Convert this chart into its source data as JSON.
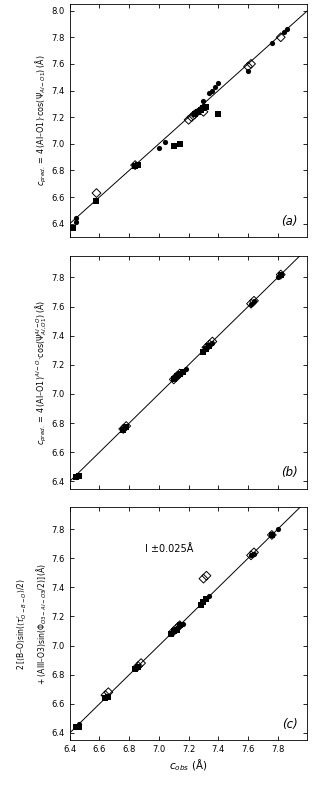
{
  "xlim": [
    6.4,
    8.0
  ],
  "ylim_a": [
    6.3,
    8.0
  ],
  "ylim_bc": [
    6.4,
    8.0
  ],
  "xticks": [
    6.4,
    6.6,
    6.8,
    7.0,
    7.2,
    7.4,
    7.6,
    7.8
  ],
  "yticks_a": [
    6.4,
    6.6,
    6.8,
    7.0,
    7.2,
    7.4,
    7.6,
    7.8,
    8.0
  ],
  "yticks_bc": [
    6.4,
    6.6,
    6.8,
    7.0,
    7.2,
    7.4,
    7.6,
    7.8
  ],
  "xlabel": "$c_{obs}$ (Å)",
  "panel_a": {
    "label": "(a)",
    "filled_circles": [
      [
        6.44,
        6.41
      ],
      [
        6.44,
        6.44
      ],
      [
        7.0,
        6.97
      ],
      [
        7.04,
        7.01
      ],
      [
        7.26,
        7.25
      ],
      [
        7.28,
        7.27
      ],
      [
        7.3,
        7.32
      ],
      [
        7.34,
        7.38
      ],
      [
        7.36,
        7.4
      ],
      [
        7.38,
        7.43
      ],
      [
        7.4,
        7.46
      ],
      [
        7.6,
        7.55
      ],
      [
        7.76,
        7.76
      ],
      [
        7.84,
        7.84
      ],
      [
        7.86,
        7.86
      ]
    ],
    "filled_squares": [
      [
        6.42,
        6.37
      ],
      [
        6.58,
        6.57
      ],
      [
        6.84,
        6.83
      ],
      [
        6.86,
        6.84
      ],
      [
        7.1,
        6.98
      ],
      [
        7.14,
        7.0
      ],
      [
        7.24,
        7.22
      ],
      [
        7.26,
        7.24
      ],
      [
        7.28,
        7.25
      ],
      [
        7.3,
        7.27
      ],
      [
        7.32,
        7.28
      ],
      [
        7.4,
        7.22
      ]
    ],
    "open_diamonds": [
      [
        6.58,
        6.63
      ],
      [
        6.84,
        6.84
      ],
      [
        7.2,
        7.18
      ],
      [
        7.22,
        7.2
      ],
      [
        7.24,
        7.22
      ],
      [
        7.3,
        7.24
      ],
      [
        7.6,
        7.58
      ],
      [
        7.62,
        7.6
      ],
      [
        7.82,
        7.8
      ]
    ]
  },
  "panel_b": {
    "label": "(b)",
    "filled_circles": [
      [
        6.44,
        6.43
      ],
      [
        6.46,
        6.44
      ],
      [
        7.14,
        7.14
      ],
      [
        7.16,
        7.15
      ],
      [
        7.18,
        7.17
      ],
      [
        7.34,
        7.33
      ],
      [
        7.36,
        7.35
      ],
      [
        7.62,
        7.62
      ],
      [
        7.64,
        7.64
      ],
      [
        7.8,
        7.8
      ],
      [
        7.82,
        7.82
      ]
    ],
    "filled_squares": [
      [
        6.44,
        6.43
      ],
      [
        6.46,
        6.44
      ],
      [
        6.76,
        6.75
      ],
      [
        6.78,
        6.77
      ],
      [
        7.1,
        7.1
      ],
      [
        7.12,
        7.12
      ],
      [
        7.14,
        7.14
      ],
      [
        7.16,
        7.15
      ],
      [
        7.3,
        7.29
      ],
      [
        7.32,
        7.31
      ],
      [
        7.34,
        7.33
      ],
      [
        7.82,
        7.82
      ]
    ],
    "open_diamonds": [
      [
        6.76,
        6.76
      ],
      [
        6.78,
        6.78
      ],
      [
        7.1,
        7.1
      ],
      [
        7.12,
        7.12
      ],
      [
        7.14,
        7.14
      ],
      [
        7.32,
        7.32
      ],
      [
        7.34,
        7.34
      ],
      [
        7.36,
        7.36
      ],
      [
        7.62,
        7.62
      ],
      [
        7.64,
        7.64
      ],
      [
        7.82,
        7.82
      ]
    ]
  },
  "panel_c": {
    "label": "(c)",
    "annotation": "I ±0.025Å",
    "filled_circles": [
      [
        6.44,
        6.44
      ],
      [
        6.46,
        6.46
      ],
      [
        7.12,
        7.12
      ],
      [
        7.14,
        7.14
      ],
      [
        7.16,
        7.15
      ],
      [
        7.32,
        7.32
      ],
      [
        7.34,
        7.34
      ],
      [
        7.62,
        7.62
      ],
      [
        7.64,
        7.63
      ],
      [
        7.76,
        7.76
      ],
      [
        7.8,
        7.8
      ]
    ],
    "filled_squares": [
      [
        6.44,
        6.44
      ],
      [
        6.46,
        6.44
      ],
      [
        6.64,
        6.64
      ],
      [
        6.66,
        6.65
      ],
      [
        6.84,
        6.84
      ],
      [
        6.86,
        6.85
      ],
      [
        7.08,
        7.08
      ],
      [
        7.1,
        7.1
      ],
      [
        7.12,
        7.11
      ],
      [
        7.14,
        7.14
      ],
      [
        7.28,
        7.28
      ],
      [
        7.3,
        7.3
      ],
      [
        7.32,
        7.32
      ],
      [
        7.76,
        7.76
      ]
    ],
    "open_diamonds": [
      [
        6.64,
        6.66
      ],
      [
        6.66,
        6.68
      ],
      [
        6.86,
        6.86
      ],
      [
        6.88,
        6.88
      ],
      [
        7.1,
        7.1
      ],
      [
        7.12,
        7.12
      ],
      [
        7.14,
        7.14
      ],
      [
        7.3,
        7.46
      ],
      [
        7.32,
        7.48
      ],
      [
        7.62,
        7.62
      ],
      [
        7.64,
        7.64
      ],
      [
        7.76,
        7.76
      ]
    ]
  },
  "figsize": [
    3.17,
    7.96
  ],
  "dpi": 100
}
